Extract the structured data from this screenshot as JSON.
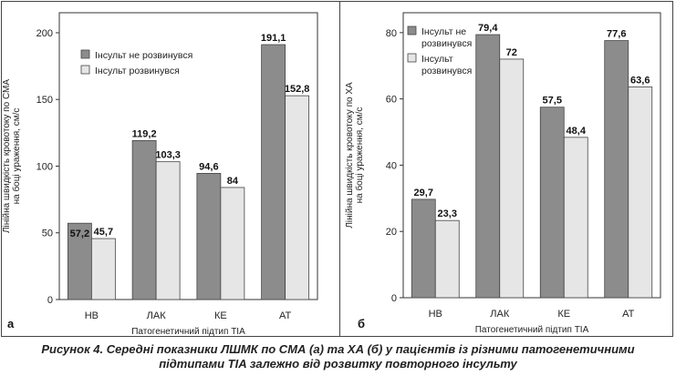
{
  "chart_data": [
    {
      "type": "bar",
      "panel_label": "а",
      "categories": [
        "НВ",
        "ЛАК",
        "КЕ",
        "АТ"
      ],
      "series": [
        {
          "name": "Інсульт не розвинувся",
          "values": [
            57.2,
            119.2,
            94.6,
            191.1
          ],
          "color": "#8c8c8c"
        },
        {
          "name": "Інсульт розвинувся",
          "values": [
            45.7,
            103.3,
            84,
            152.8
          ],
          "color": "#e6e6e6"
        }
      ],
      "value_labels": [
        [
          "57,2",
          "119,2",
          "94,6",
          "191,1"
        ],
        [
          "45,7",
          "103,3",
          "84",
          "152,8"
        ]
      ],
      "xlabel": "Патогенетичний підтип TIA",
      "ylabel": [
        "Лінійна швидкість кровотоку по СМА",
        "на боці ураження, см/с"
      ],
      "ylim": [
        0,
        215
      ],
      "yticks": [
        0,
        50,
        100,
        150,
        200
      ],
      "legend_position": "top-left",
      "grid": false
    },
    {
      "type": "bar",
      "panel_label": "б",
      "categories": [
        "НВ",
        "ЛАК",
        "КЕ",
        "АТ"
      ],
      "series": [
        {
          "name": "Інсульт не розвинувся",
          "values": [
            29.7,
            79.4,
            57.5,
            77.6
          ],
          "color": "#8c8c8c"
        },
        {
          "name": "Інсульт розвинувся",
          "values": [
            23.3,
            72,
            48.4,
            63.6
          ],
          "color": "#e6e6e6"
        }
      ],
      "value_labels": [
        [
          "29,7",
          "79,4",
          "57,5",
          "77,6"
        ],
        [
          "23,3",
          "72",
          "48,4",
          "63,6"
        ]
      ],
      "xlabel": "Патогенетичний підтип TIA",
      "ylabel": [
        "Лінійна швидкість кровотоку по ХА",
        "на боці ураження, см/с"
      ],
      "ylim": [
        0,
        86
      ],
      "yticks": [
        0,
        20,
        40,
        60,
        80
      ],
      "legend_position": "top-left",
      "grid": false
    }
  ],
  "legend_a": [
    "Інсульт не розвинувся",
    "Інсульт розвинувся"
  ],
  "legend_b": [
    [
      "Інсульт не",
      "розвинувся"
    ],
    [
      "Інсульт",
      "розвинувся"
    ]
  ],
  "caption": {
    "line1": "Рисунок 4. Середні показники ЛШМК по СМА (а) та ХА (б) у пацієнтів із різними патогенетичними",
    "line2": "підтипами TIA залежно від розвитку повторного інсульту"
  }
}
